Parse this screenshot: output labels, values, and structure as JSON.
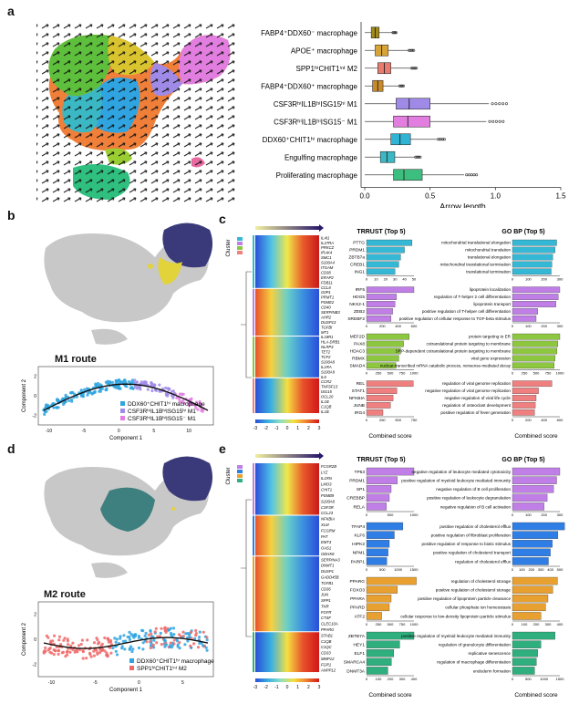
{
  "panels": {
    "a": "a",
    "b": "b",
    "c": "c",
    "d": "d",
    "e": "e"
  },
  "panel_a": {
    "xlabel": "Arrow length",
    "xticks": [
      "0.0",
      "0.5",
      "1.0",
      "1.5"
    ],
    "chart_data": {
      "type": "box",
      "categories": [
        "FABP4⁺DDX60⁻ macrophage",
        "APOE⁺ macrophage",
        "SPP1ʰⁱCHIT1ⁱⁿᵗ M2",
        "FABP4⁺DDX60⁺ macrophage",
        "CSF3RʰⁱIL1BʰⁱISG15ʰⁱ M1",
        "CSF3RʰⁱIL1BʰⁱISG15⁻ M1",
        "DDX60⁺CHIT1ʰⁱ macrophage",
        "Engulfing macrophage",
        "Proliferating macrophage"
      ],
      "box": [
        {
          "q1": 0.05,
          "median": 0.08,
          "q3": 0.11,
          "min": 0.0,
          "max": 0.21,
          "color": "#a08a1a"
        },
        {
          "q1": 0.08,
          "median": 0.13,
          "q3": 0.18,
          "min": 0.0,
          "max": 0.33,
          "color": "#d9a437"
        },
        {
          "q1": 0.1,
          "median": 0.15,
          "q3": 0.2,
          "min": 0.0,
          "max": 0.35,
          "color": "#e87a6e"
        },
        {
          "q1": 0.06,
          "median": 0.1,
          "q3": 0.14,
          "min": 0.0,
          "max": 0.26,
          "color": "#c98a2a"
        },
        {
          "q1": 0.24,
          "median": 0.34,
          "q3": 0.5,
          "min": 0.0,
          "max": 0.95,
          "color": "#a08ae8"
        },
        {
          "q1": 0.22,
          "median": 0.33,
          "q3": 0.5,
          "min": 0.0,
          "max": 0.93,
          "color": "#e27ee0"
        },
        {
          "q1": 0.2,
          "median": 0.27,
          "q3": 0.35,
          "min": 0.0,
          "max": 0.55,
          "color": "#2fb4d6"
        },
        {
          "q1": 0.12,
          "median": 0.17,
          "q3": 0.23,
          "min": 0.0,
          "max": 0.38,
          "color": "#3bb8c4"
        },
        {
          "q1": 0.22,
          "median": 0.3,
          "q3": 0.44,
          "min": 0.0,
          "max": 0.76,
          "color": "#3cbf7e"
        }
      ],
      "xlim": [
        0,
        1.5
      ]
    }
  },
  "panel_b": {
    "route": "M1 route",
    "xlabel": "Component 1",
    "ylabel": "Component 2",
    "legend": [
      "DDX60⁺CHIT1ʰⁱ macrophage",
      "CSF3RʰⁱIL1BʰⁱISG15ʰⁱ M1",
      "CSF3RʰⁱIL1BʰⁱISG15⁻ M1"
    ],
    "legend_colors": [
      "#2fa4e0",
      "#a08ae8",
      "#e27ee0"
    ],
    "xticks": [
      "-10",
      "-5",
      "0",
      "5",
      "10"
    ],
    "yticks": [
      "-2",
      "0",
      "2"
    ]
  },
  "panel_c": {
    "cluster_label": "Cluster",
    "genes": [
      "IL4I1",
      "IL27RA",
      "PRKCZ",
      "IRAK4",
      "SMC1",
      "S100A4",
      "ITGAM",
      "CD38",
      "ERAP2",
      "FDB11",
      "CCL8",
      "G0P1",
      "PRMT1",
      "PSME2",
      "CD40",
      "SERPINB3",
      "AHR2",
      "DUSP13",
      "TGFBI",
      "MT1",
      "IL18R1",
      "HLA-DRB1",
      "NLRP3",
      "TET2",
      "TCF2",
      "S100A8",
      "IL1RA",
      "S100A9",
      "IL6",
      "CCR2",
      "TNFSF13",
      "ISG15",
      "OCL20",
      "IL1B",
      "C1QB",
      "IL1B"
    ],
    "colorbar_ticks": [
      "-3",
      "-2",
      "-1",
      "0",
      "1",
      "2",
      "3"
    ],
    "trrust_title": "TRRUST (Top 5)",
    "gobp_title": "GO BP (Top 5)",
    "xlabel": "Combined score",
    "trrust_blocks": [
      {
        "color": "#35b8d6",
        "labels": [
          "PTTG",
          "PRDM1",
          "ZBTB7a",
          "CREB1",
          "ING1"
        ],
        "values": [
          48,
          40,
          36,
          34,
          30
        ],
        "max": 50,
        "ticks": [
          "0",
          "10",
          "20",
          "30",
          "40",
          "50"
        ]
      },
      {
        "color": "#c07fe6",
        "labels": [
          "IRF5",
          "HDG5",
          "NKX2-1",
          "ZEB2",
          "SREBF2"
        ],
        "values": [
          600,
          380,
          360,
          330,
          310
        ],
        "max": 600,
        "ticks": [
          "0",
          "200",
          "400",
          "600"
        ]
      },
      {
        "color": "#8dc63f",
        "labels": [
          "MEF2D",
          "PAX8",
          "HDAC3",
          "RBMX",
          "SMAD4"
        ],
        "values": [
          900,
          780,
          720,
          680,
          620
        ],
        "max": 1000,
        "ticks": [
          "0",
          "250",
          "500",
          "750",
          "1000"
        ]
      },
      {
        "color": "#f08080",
        "labels": [
          "REL",
          "STAT1",
          "NFKBIA",
          "JUNB",
          "IRG4"
        ],
        "values": [
          740,
          480,
          420,
          380,
          260
        ],
        "max": 750,
        "ticks": [
          "0",
          "250",
          "500",
          "750"
        ]
      }
    ],
    "gobp_blocks": [
      {
        "color": "#35b8d6",
        "labels": [
          "mitochondrial translational elongation",
          "mitochondrial translation",
          "translational elongation",
          "mitochondrial translational termination",
          "translational termination"
        ],
        "values": [
          280,
          270,
          255,
          250,
          245
        ],
        "max": 300,
        "ticks": [
          "0",
          "100",
          "200",
          "300"
        ]
      },
      {
        "color": "#c07fe6",
        "labels": [
          "lipoprotein localization",
          "regulation of T-helper 2 cell differentiation",
          "lipoprotein transport",
          "positive regulation of T-helper cell differentiation",
          "positive regulation of cellular response to TGF-beta stimulus"
        ],
        "values": [
          300,
          290,
          275,
          160,
          150
        ],
        "max": 300,
        "ticks": [
          "0",
          "100",
          "200",
          "300"
        ]
      },
      {
        "color": "#8dc63f",
        "labels": [
          "protein targeting to ER",
          "cotranslational protein targeting to membrane",
          "SRP-dependent cotranslational protein targeting to membrane",
          "viral gene expression",
          "nuclear-transcribed mRNA catabolic process, nonsense-mediated decay"
        ],
        "values": [
          1000,
          960,
          940,
          900,
          880
        ],
        "max": 1000,
        "ticks": [
          "0",
          "250",
          "500",
          "750",
          "1000"
        ]
      },
      {
        "color": "#f08080",
        "labels": [
          "regulation of viral genome replication",
          "negative regulation of viral genome replication",
          "negative regulation of viral life cycle",
          "regulation of osteoclast development",
          "positive regulation of fever generation"
        ],
        "values": [
          500,
          330,
          300,
          290,
          280
        ],
        "max": 600,
        "ticks": [
          "0",
          "200",
          "400",
          "600"
        ]
      }
    ]
  },
  "panel_d": {
    "route": "M2 route",
    "xlabel": "Component 1",
    "ylabel": "Component 2",
    "legend": [
      "DDX60⁺CHIT1ʰⁱ macrophage",
      "SPP1ʰⁱCHIT1ⁱⁿᵗ M2"
    ],
    "legend_colors": [
      "#2fa4e0",
      "#f06a6a"
    ],
    "xticks": [
      "-10",
      "-5",
      "0",
      "5"
    ],
    "yticks": [
      "-2",
      "0",
      "2"
    ]
  },
  "panel_e": {
    "cluster_label": "Cluster",
    "genes": [
      "FCGR2B",
      "LYZ",
      "IL1RN",
      "LMO3",
      "CHIT1",
      "PSMB9",
      "S100A8",
      "CSF3R",
      "CCL23",
      "NFKBIA",
      "XLM",
      "FCGRM",
      "PAT",
      "EMT3",
      "OAS1",
      "ODHX8",
      "SERPINA3",
      "DNMT1",
      "DUSP1",
      "GADD45B",
      "TGFB1",
      "CD36",
      "JUN",
      "SPP1",
      "TNR",
      "FGFR",
      "CTSF",
      "CLEC10A",
      "PPARG",
      "STAB1",
      "C1QB",
      "C1QC",
      "CD33",
      "MMP12",
      "FGR1",
      "ANPP12"
    ],
    "colorbar_ticks": [
      "-3",
      "-2",
      "-1",
      "0",
      "1",
      "2",
      "3"
    ],
    "trrust_title": "TRRUST (Top 5)",
    "gobp_title": "GO BP (Top 5)",
    "xlabel": "Combined score",
    "trrust_blocks": [
      {
        "color": "#c07fe6",
        "labels": [
          "TP53",
          "PRDM1",
          "SP1",
          "CREBBP",
          "RELA"
        ],
        "values": [
          1000,
          650,
          520,
          480,
          420
        ],
        "max": 1000,
        "ticks": [
          "0",
          "500",
          "1000"
        ]
      },
      {
        "color": "#2f7ee6",
        "labels": [
          "TFAP4",
          "KLF6",
          "HIPK2",
          "NPM1",
          "PARP1"
        ],
        "values": [
          1150,
          880,
          720,
          680,
          640
        ],
        "max": 1500,
        "ticks": [
          "0",
          "500",
          "1000",
          "1500"
        ]
      },
      {
        "color": "#e8a030",
        "labels": [
          "PPARG",
          "FOXO3",
          "PPARA",
          "PPARD",
          "ATF2"
        ],
        "values": [
          1050,
          650,
          520,
          480,
          320
        ],
        "max": 1000,
        "ticks": [
          "0",
          "250",
          "500",
          "750",
          "1000"
        ]
      },
      {
        "color": "#2fae7e",
        "labels": [
          "ZBTB7A",
          "HEY1",
          "ELF1",
          "SMARCA4",
          "DNMT3A"
        ],
        "values": [
          400,
          280,
          230,
          210,
          180
        ],
        "max": 400,
        "ticks": [
          "0",
          "100",
          "200",
          "300",
          "400"
        ]
      }
    ],
    "gobp_blocks": [
      {
        "color": "#c07fe6",
        "labels": [
          "negative regulation of leukocyte mediated cytotoxicity",
          "positive regulation of myeloid leukocyte mediated immunity",
          "negative regulation of B cell proliferation",
          "positive regulation of leukocyte degranulation",
          "negative regulation of B cell activation"
        ],
        "values": [
          300,
          280,
          260,
          220,
          200
        ],
        "max": 300,
        "ticks": [
          "0",
          "100",
          "200",
          "300"
        ]
      },
      {
        "color": "#2f7ee6",
        "labels": [
          "positive regulation of cholesterol efflux",
          "positive regulation of fibroblast proliferation",
          "positive regulation of response to biotic stimulus",
          "positive regulation of cholesterol transport",
          "regulation of cholesterol efflux"
        ],
        "values": [
          550,
          480,
          420,
          400,
          380
        ],
        "max": 500,
        "ticks": [
          "0",
          "100",
          "200",
          "300",
          "400",
          "500"
        ]
      },
      {
        "color": "#e8a030",
        "labels": [
          "regulation of cholesterol storage",
          "positive regulation of cholesterol storage",
          "positive regulation of lipoprotein particle clearance",
          "cellular phosphate ion homeostasis",
          "cellular response to low-density lipoprotein particle stimulus"
        ],
        "values": [
          380,
          340,
          300,
          280,
          240
        ],
        "max": 400,
        "ticks": [
          "0",
          "100",
          "200",
          "300",
          "400"
        ]
      },
      {
        "color": "#2fae7e",
        "labels": [
          "positive regulation of myeloid leukocyte mediated immunity",
          "regulation of granulocyte differentiation",
          "replicative senescence",
          "regulation of macrophage differentiation",
          "endoderm formation"
        ],
        "values": [
          1350,
          900,
          800,
          760,
          700
        ],
        "max": 1500,
        "ticks": [
          "0",
          "500",
          "1000",
          "1500"
        ]
      }
    ]
  }
}
